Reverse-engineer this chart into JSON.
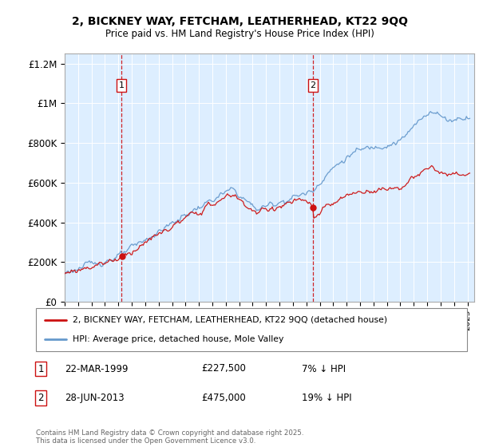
{
  "title_line1": "2, BICKNEY WAY, FETCHAM, LEATHERHEAD, KT22 9QQ",
  "title_line2": "Price paid vs. HM Land Registry's House Price Index (HPI)",
  "ylabel_ticks": [
    "£0",
    "£200K",
    "£400K",
    "£600K",
    "£800K",
    "£1M",
    "£1.2M"
  ],
  "ytick_values": [
    0,
    200000,
    400000,
    600000,
    800000,
    1000000,
    1200000
  ],
  "ylim": [
    0,
    1250000
  ],
  "x_start_year": 1995,
  "x_end_year": 2025,
  "hpi_color": "#6699cc",
  "price_color": "#cc1111",
  "vline_color": "#cc0000",
  "background_color": "#ddeeff",
  "purchase1_year": 1999.23,
  "purchase1_price": 227500,
  "purchase2_year": 2013.49,
  "purchase2_price": 475000,
  "legend_line1": "2, BICKNEY WAY, FETCHAM, LEATHERHEAD, KT22 9QQ (detached house)",
  "legend_line2": "HPI: Average price, detached house, Mole Valley",
  "footer": "Contains HM Land Registry data © Crown copyright and database right 2025.\nThis data is licensed under the Open Government Licence v3.0.",
  "table_rows": [
    {
      "label": "1",
      "date": "22-MAR-1999",
      "price": "£227,500",
      "pct": "7% ↓ HPI"
    },
    {
      "label": "2",
      "date": "28-JUN-2013",
      "price": "£475,000",
      "pct": "19% ↓ HPI"
    }
  ]
}
